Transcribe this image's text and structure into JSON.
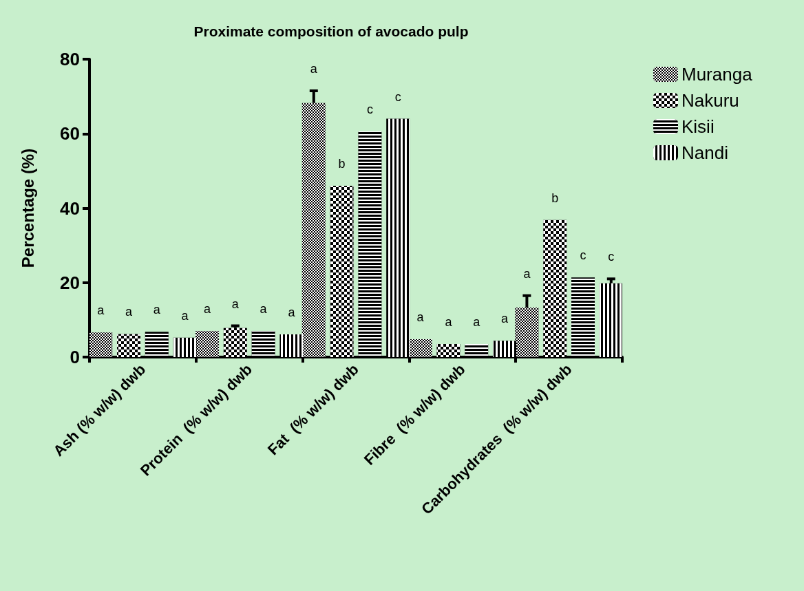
{
  "chart_data": {
    "type": "bar",
    "title": "Proximate composition of avocado pulp",
    "ylabel": "Percentage (%)",
    "categories": [
      "Ash (% w/w) dwb",
      "Protein  (% w/w) dwb",
      "Fat  (% w/w) dwb",
      "Fibre  (% w/w) dwb",
      "Carbohydrates  (% w/w) dwb"
    ],
    "series": [
      {
        "name": "Muranga",
        "color": "#000000",
        "values": [
          6.6,
          7.0,
          68.2,
          4.8,
          13.3
        ],
        "errors": [
          null,
          null,
          3.3,
          null,
          3.2
        ]
      },
      {
        "name": "Nakuru",
        "color": "#000000",
        "values": [
          6.2,
          7.8,
          46.0,
          3.5,
          36.8
        ],
        "errors": [
          null,
          0.6,
          null,
          null,
          null
        ]
      },
      {
        "name": "Kisii",
        "color": "#000000",
        "values": [
          6.8,
          7.0,
          60.6,
          3.5,
          21.4
        ],
        "errors": [
          null,
          null,
          null,
          null,
          null
        ]
      },
      {
        "name": "Nandi",
        "color": "#000000",
        "values": [
          5.2,
          6.1,
          64.0,
          4.4,
          19.8
        ],
        "errors": [
          null,
          null,
          null,
          null,
          1.2
        ]
      }
    ],
    "ylim": [
      0,
      80
    ],
    "yticks": [
      0,
      20,
      40,
      60,
      80
    ],
    "grid": false,
    "legend": "top right",
    "annotations": [
      "a",
      "a",
      "a",
      "a",
      "a",
      "a",
      "a",
      "a",
      "a",
      "b",
      "c",
      "c",
      "a",
      "a",
      "a",
      "a",
      "a",
      "b",
      "c",
      "c"
    ]
  }
}
